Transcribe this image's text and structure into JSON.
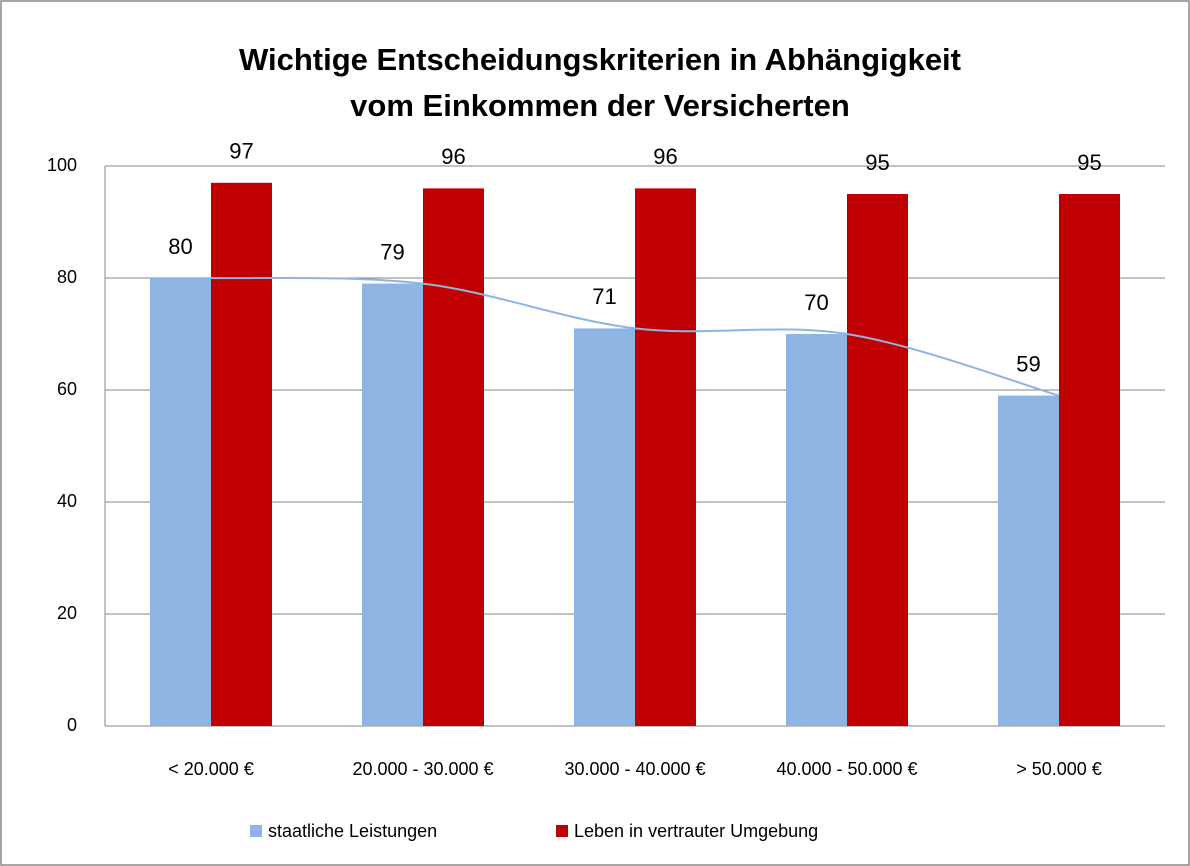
{
  "chart_data": {
    "type": "bar",
    "title": [
      "Wichtige Entscheidungskriterien in Abhängigkeit",
      "vom Einkommen der Versicherten"
    ],
    "categories": [
      "< 20.000 €",
      "20.000 - 30.000 €",
      "30.000 - 40.000 €",
      "40.000 - 50.000 €",
      "> 50.000 €"
    ],
    "series": [
      {
        "name": "staatliche Leistungen",
        "color": "#8eb4e3",
        "values": [
          80,
          79,
          71,
          70,
          59
        ]
      },
      {
        "name": "Leben in vertrauter Umgebung",
        "color": "#c00000",
        "values": [
          97,
          96,
          96,
          95,
          95
        ]
      }
    ],
    "trendline_color": "#8eb4e3",
    "ylim": [
      0,
      100
    ],
    "yticks": [
      0,
      20,
      40,
      60,
      80,
      100
    ],
    "grid": true,
    "legend": "bottom"
  }
}
